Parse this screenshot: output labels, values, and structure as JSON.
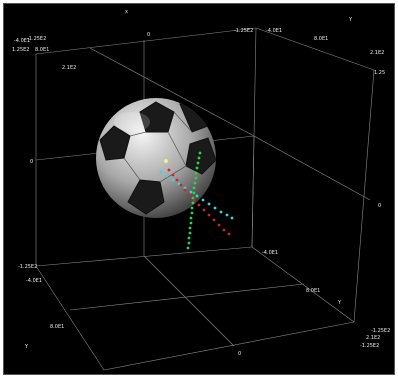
{
  "axis_letters": {
    "x_top": "x",
    "y_top_right": "Y",
    "y_bottom_right": "Y",
    "y_bottom_left": "Y"
  },
  "ticks": {
    "top_left_a": "-4.0E1",
    "top_left_b": "-1.25E2",
    "top_left_c": "1.25E2",
    "top_left_d": "8.0E1",
    "top_left_e": "2.1E2",
    "top_mid_0": "0",
    "top_right_a": "-1.25E2",
    "top_right_b": "-4.0E1",
    "top_right_c": "8.0E1",
    "right_a": "2.1E2",
    "right_b": "1.25",
    "left_mid_0": "0",
    "right_mid_0": "0",
    "left_bottom_a": "-1.25E2",
    "left_bottom_b": "-4.0E1",
    "center_a": "-4.0E1",
    "center_b": "8.0E1",
    "bottom_left_a": "8.0E1",
    "bottom_mid_0": "0",
    "bottom_right_a": "-1.25E2",
    "bottom_right_b": "2.1E2",
    "bottom_right_c": "-1.25E2"
  },
  "colors": {
    "background": "#000000",
    "grid": "#8a8a8a",
    "vector_green": "#2fd04a",
    "vector_cyan": "#35d6e6",
    "vector_red": "#d4222a",
    "origin_marker": "#f2f08a",
    "ball_white": "#d8d8d8",
    "ball_black": "#1a1a1a"
  },
  "objects": {
    "ball": "soccer-ball",
    "vectors": [
      "green",
      "cyan",
      "red"
    ]
  }
}
